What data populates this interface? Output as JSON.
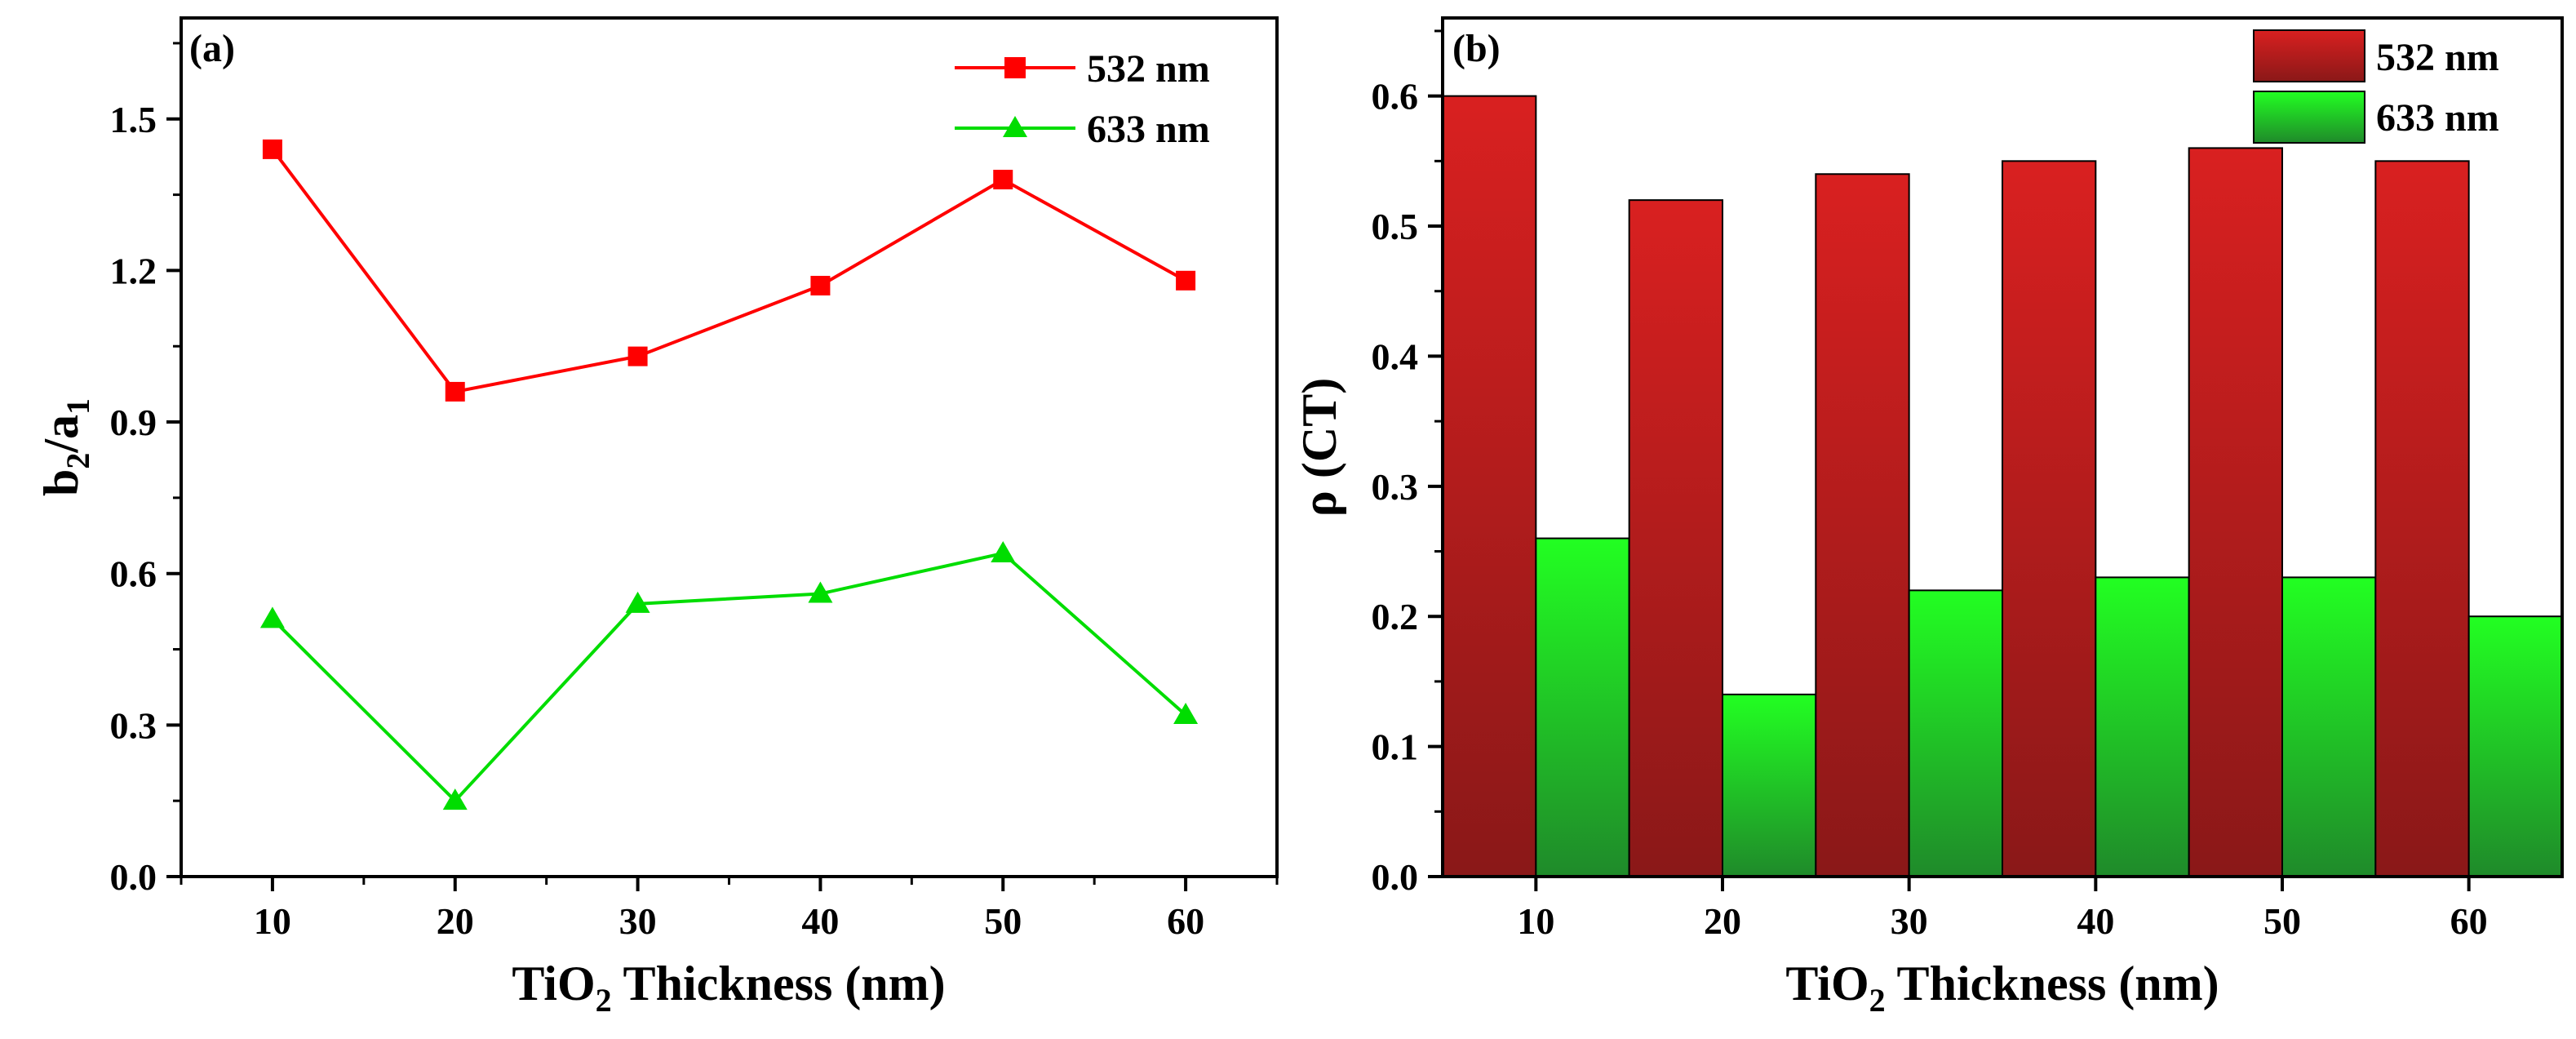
{
  "chart_data": [
    {
      "panel_label": "(a)",
      "type": "line",
      "x": [
        10,
        20,
        30,
        40,
        50,
        60
      ],
      "series": [
        {
          "name": "532 nm",
          "values": [
            1.44,
            0.96,
            1.03,
            1.17,
            1.38,
            1.18
          ],
          "color": "#ff0000",
          "marker": "square"
        },
        {
          "name": "633 nm",
          "values": [
            0.51,
            0.15,
            0.54,
            0.56,
            0.64,
            0.32
          ],
          "color": "#00dd00",
          "marker": "triangle"
        }
      ],
      "xlabel": {
        "main": "TiO",
        "sub": "2",
        "rest": " Thickness (nm)"
      },
      "ylabel": {
        "b": "b",
        "sub1": "2",
        "slash": "/a",
        "sub2": "1"
      },
      "xlim": [
        5,
        65
      ],
      "ylim": [
        0,
        1.7
      ],
      "xticks": [
        10,
        20,
        30,
        40,
        50,
        60
      ],
      "yticks": [
        "0.0",
        "0.3",
        "0.6",
        "0.9",
        "1.2",
        "1.5"
      ],
      "legend_position": "top-right",
      "grid": false
    },
    {
      "panel_label": "(b)",
      "type": "bar",
      "categories": [
        "10",
        "20",
        "30",
        "40",
        "50",
        "60"
      ],
      "series": [
        {
          "name": "532 nm",
          "values": [
            0.6,
            0.52,
            0.54,
            0.55,
            0.56,
            0.55
          ],
          "color_top": "#d92020",
          "color_bottom": "#8a1818"
        },
        {
          "name": "633 nm",
          "values": [
            0.26,
            0.14,
            0.22,
            0.23,
            0.23,
            0.2
          ],
          "color_top": "#22ff22",
          "color_bottom": "#1f8a2a"
        }
      ],
      "xlabel": {
        "main": "TiO",
        "sub": "2",
        "rest": " Thickness (nm)"
      },
      "ylabel": "ρ (CT)",
      "ylim": [
        0,
        0.66
      ],
      "yticks": [
        "0.0",
        "0.1",
        "0.2",
        "0.3",
        "0.4",
        "0.5",
        "0.6"
      ],
      "legend_position": "top-right",
      "grid": false
    }
  ]
}
